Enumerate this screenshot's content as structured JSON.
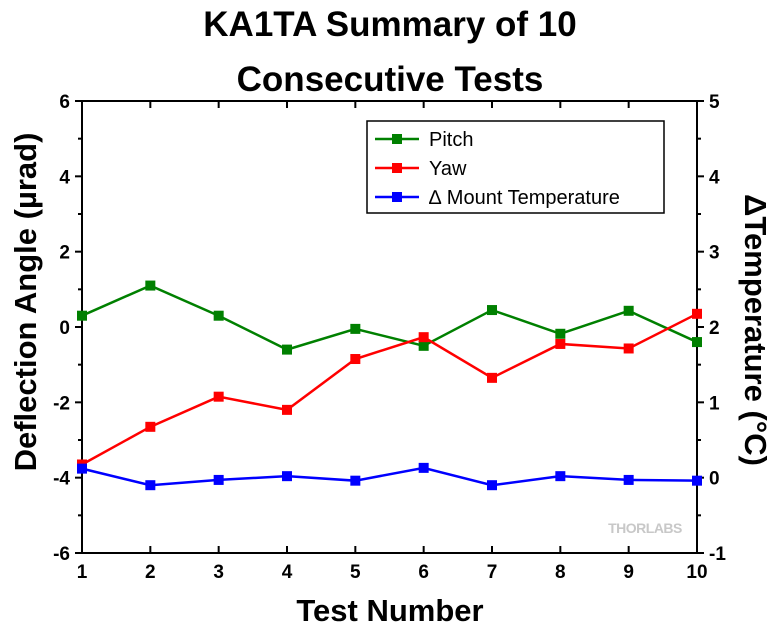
{
  "chart_data": {
    "type": "line",
    "title_lines": [
      "KA1TA Summary of 10",
      "Consecutive Tests"
    ],
    "xlabel": "Test Number",
    "ylabel_left": "Deflection Angle (µrad)",
    "ylabel_right": "ΔTemperature (°C)",
    "x": [
      1,
      2,
      3,
      4,
      5,
      6,
      7,
      8,
      9,
      10
    ],
    "xlim": [
      1,
      10
    ],
    "ylim_left": [
      -6,
      6
    ],
    "ylim_right": [
      -1,
      5
    ],
    "xticks": [
      "1",
      "2",
      "3",
      "4",
      "5",
      "6",
      "7",
      "8",
      "9",
      "10"
    ],
    "yticks_left": [
      "-6",
      "-4",
      "-2",
      "0",
      "2",
      "4",
      "6"
    ],
    "yticks_right": [
      "-1",
      "0",
      "1",
      "2",
      "3",
      "4",
      "5"
    ],
    "grid": false,
    "legend_position": "top-right",
    "series": [
      {
        "name": "Pitch",
        "axis": "left",
        "color": "#008000",
        "values": [
          0.3,
          1.1,
          0.3,
          -0.6,
          -0.05,
          -0.5,
          0.45,
          -0.18,
          0.43,
          -0.4
        ]
      },
      {
        "name": "Yaw",
        "axis": "left",
        "color": "#ff0000",
        "values": [
          -3.65,
          -2.65,
          -1.85,
          -2.2,
          -0.85,
          -0.27,
          -1.35,
          -0.45,
          -0.57,
          0.35
        ]
      },
      {
        "name": "∆ Mount Temperature",
        "axis": "right",
        "color": "#0000ff",
        "values": [
          0.12,
          -0.1,
          -0.03,
          0.02,
          -0.04,
          0.13,
          -0.1,
          0.02,
          -0.03,
          -0.04
        ]
      }
    ]
  },
  "watermark": {
    "text": "THORLABS",
    "color": "#c8c8c8"
  }
}
